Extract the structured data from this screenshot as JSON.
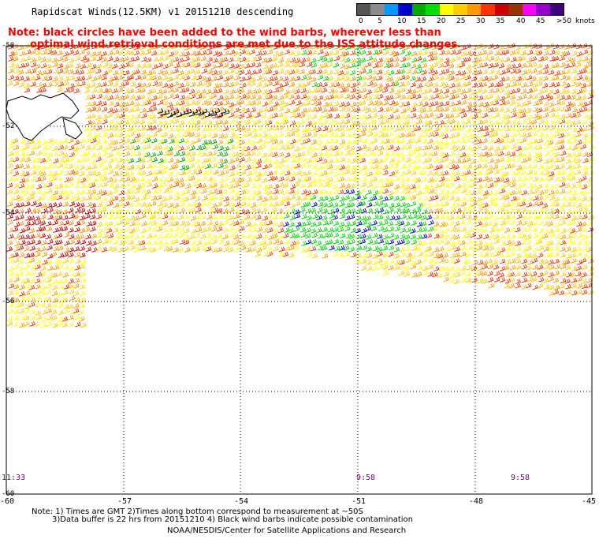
{
  "header": {
    "title": "Rapidscat Winds(12.5KM) v1 20151210 descending",
    "note_line1": "Note: black circles have been added to the wind barbs, wherever less than",
    "note_line2": "optimal wind retrieval conditions are met due to the ISS attitude changes."
  },
  "legend": {
    "unit": "knots",
    "colors": [
      "#555555",
      "#8c8c8c",
      "#0099ff",
      "#0000cc",
      "#00aa00",
      "#00dd00",
      "#ffff00",
      "#ffcc00",
      "#ff9900",
      "#ff3300",
      "#cc0000",
      "#993300",
      "#ff00ff",
      "#9900cc",
      "#400080"
    ],
    "labels": [
      "0",
      "5",
      "10",
      "15",
      "20",
      "25",
      "30",
      "35",
      "40",
      "45",
      ">50"
    ]
  },
  "map": {
    "lat_labels": [
      "-50",
      "-52",
      "-54",
      "-56",
      "-58",
      "-60"
    ],
    "lon_labels": [
      "-60",
      "-57",
      "-54",
      "-51",
      "-48",
      "-45"
    ],
    "time_labels": [
      "11:33",
      "9:58",
      "9:58"
    ]
  },
  "footer": {
    "line1": "Note: 1) Times are GMT 2)Times along bottom correspond to measurement at ~50S",
    "line2": "3)Data buffer is 22 hrs from 20151210 4) Black wind barbs indicate possible contamination",
    "line3": "NOAA/NESDIS/Center for Satellite Applications and Research"
  }
}
